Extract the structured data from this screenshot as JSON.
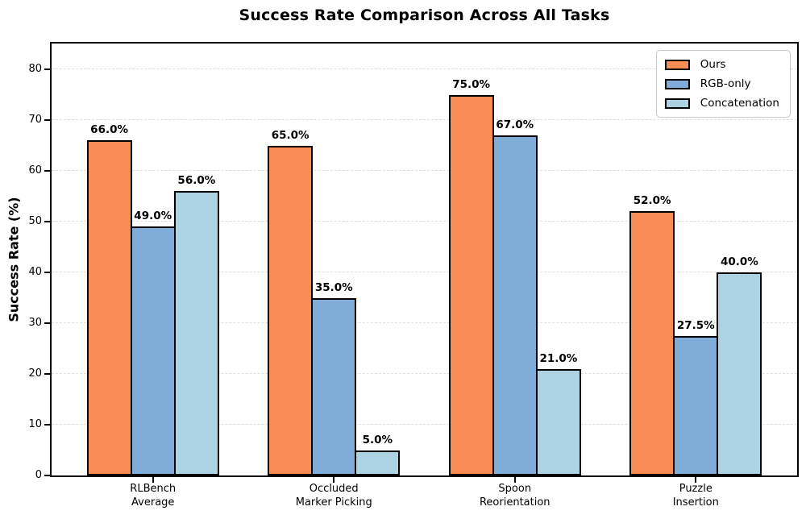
{
  "chart_data": {
    "type": "bar",
    "title": "Success Rate Comparison Across All Tasks",
    "xlabel": "",
    "ylabel": "Success Rate (%)",
    "categories": [
      "RLBench\nAverage",
      "Occluded\nMarker Picking",
      "Spoon\nReorientation",
      "Puzzle\nInsertion"
    ],
    "series": [
      {
        "name": "Ours",
        "color": "#F78C54",
        "values": [
          66.0,
          65.0,
          75.0,
          52.0
        ],
        "labels": [
          "66.0%",
          "65.0%",
          "75.0%",
          "52.0%"
        ]
      },
      {
        "name": "RGB-only",
        "color": "#7FACD8",
        "values": [
          49.0,
          35.0,
          67.0,
          27.5
        ],
        "labels": [
          "49.0%",
          "35.0%",
          "67.0%",
          "27.5%"
        ]
      },
      {
        "name": "Concatenation",
        "color": "#ADD3E2",
        "values": [
          56.0,
          5.0,
          21.0,
          40.0
        ],
        "labels": [
          "56.0%",
          "5.0%",
          "21.0%",
          "40.0%"
        ]
      }
    ],
    "yticks": [
      0,
      10,
      20,
      30,
      40,
      50,
      60,
      70,
      80
    ],
    "ylim": [
      0,
      85.1
    ],
    "xlim": [
      -0.56,
      3.56
    ],
    "bar_width_units": 0.25,
    "grid": {
      "axis": "y",
      "style": "dashed",
      "color": "#DFDFDF"
    },
    "legend": {
      "position": "upper right"
    },
    "edge_color": "#000000",
    "background_color": "#FFFFFF"
  }
}
